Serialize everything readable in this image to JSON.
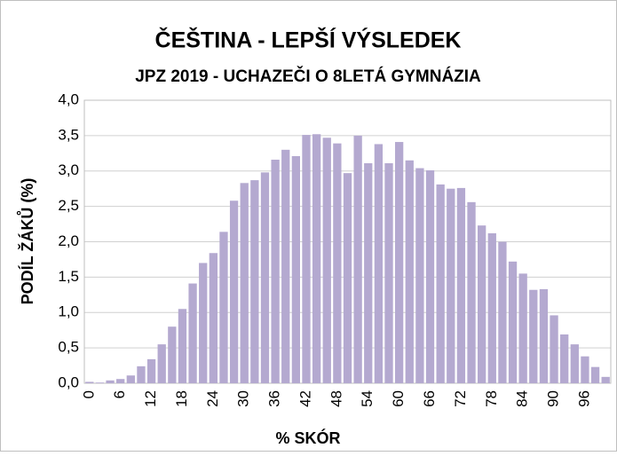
{
  "chart_data": {
    "type": "bar",
    "title": "ČEŠTINA - LEPŠÍ VÝSLEDEK",
    "subtitle": "JPZ 2019 - UCHAZEČI O 8LETÁ GYMNÁZIA",
    "x_label": "% SKÓR",
    "y_label": "PODÍL ŽÁKŮ (%)",
    "categories": [
      "0",
      null,
      null,
      "6",
      null,
      null,
      "12",
      null,
      null,
      "18",
      null,
      null,
      "24",
      null,
      null,
      "30",
      null,
      null,
      "36",
      null,
      null,
      "42",
      null,
      null,
      "48",
      null,
      null,
      "54",
      null,
      null,
      "60",
      null,
      null,
      "66",
      null,
      null,
      "72",
      null,
      null,
      "78",
      null,
      null,
      "84",
      null,
      null,
      "90",
      null,
      null,
      "96",
      null,
      null
    ],
    "values": [
      0.02,
      0.01,
      0.04,
      0.06,
      0.11,
      0.24,
      0.34,
      0.55,
      0.8,
      1.05,
      1.41,
      1.7,
      1.84,
      2.14,
      2.58,
      2.83,
      2.87,
      2.98,
      3.16,
      3.3,
      3.21,
      3.51,
      3.52,
      3.47,
      3.39,
      2.97,
      3.5,
      3.11,
      3.38,
      3.11,
      3.41,
      3.15,
      3.04,
      3.01,
      2.81,
      2.75,
      2.76,
      2.56,
      2.23,
      2.12,
      2.0,
      1.72,
      1.55,
      1.32,
      1.33,
      0.96,
      0.69,
      0.55,
      0.38,
      0.23,
      0.09
    ],
    "color": "#b4a9d0",
    "ylim": [
      0,
      4
    ],
    "yticks": [
      {
        "value": 0,
        "label": "0,0"
      },
      {
        "value": 0.5,
        "label": "0,5"
      },
      {
        "value": 1,
        "label": "1,0"
      },
      {
        "value": 1.5,
        "label": "1,5"
      },
      {
        "value": 2,
        "label": "2,0"
      },
      {
        "value": 2.5,
        "label": "2,5"
      },
      {
        "value": 3,
        "label": "3,0"
      },
      {
        "value": 3.5,
        "label": "3,5"
      },
      {
        "value": 4,
        "label": "4,0"
      }
    ],
    "grid": true
  }
}
